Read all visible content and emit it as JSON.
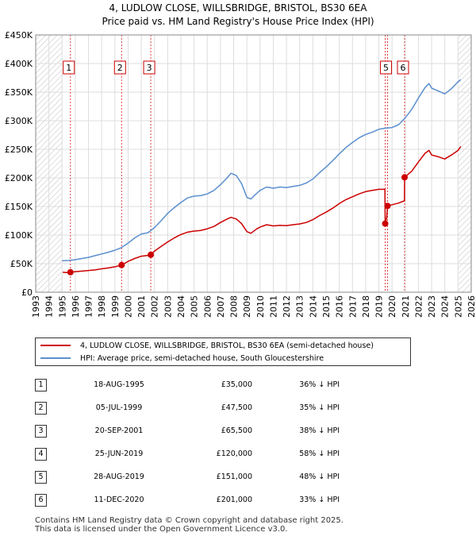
{
  "title": "4, LUDLOW CLOSE, WILLSBRIDGE, BRISTOL, BS30 6EA",
  "subtitle": "Price paid vs. HM Land Registry's House Price Index (HPI)",
  "chart_data": {
    "type": "line",
    "x_ticks": [
      "1993",
      "1994",
      "1995",
      "1996",
      "1997",
      "1998",
      "1999",
      "2000",
      "2001",
      "2002",
      "2003",
      "2004",
      "2005",
      "2006",
      "2007",
      "2008",
      "2009",
      "2010",
      "2011",
      "2012",
      "2013",
      "2014",
      "2015",
      "2016",
      "2017",
      "2018",
      "2019",
      "2020",
      "2021",
      "2022",
      "2023",
      "2024",
      "2025",
      "2026"
    ],
    "y_ticks": [
      "£0",
      "£50K",
      "£100K",
      "£150K",
      "£200K",
      "£250K",
      "£300K",
      "£350K",
      "£400K",
      "£450K"
    ],
    "xlim": [
      1993,
      2026
    ],
    "ylim": [
      0,
      450000
    ],
    "grid": true,
    "hatched_regions": [
      [
        1993,
        1995
      ],
      [
        2025,
        2026
      ]
    ],
    "colors": {
      "price_paid": "#cc0000",
      "hpi": "#5b8fcf",
      "sale_marker_line": "#e04040"
    },
    "series": [
      {
        "name": "4, LUDLOW CLOSE, WILLSBRIDGE, BRISTOL, BS30 6EA (semi-detached house)",
        "color": "#cc0000",
        "points": [
          [
            1995.05,
            35000
          ],
          [
            1995.3,
            34500
          ],
          [
            1995.63,
            35000
          ],
          [
            1996,
            36000
          ],
          [
            1996.5,
            37000
          ],
          [
            1997,
            38000
          ],
          [
            1997.5,
            39000
          ],
          [
            1998,
            41000
          ],
          [
            1998.5,
            42500
          ],
          [
            1999,
            44500
          ],
          [
            1999.51,
            47500
          ],
          [
            2000,
            54000
          ],
          [
            2000.5,
            59000
          ],
          [
            2001,
            63000
          ],
          [
            2001.5,
            64500
          ],
          [
            2001.72,
            65500
          ],
          [
            2002,
            72000
          ],
          [
            2002.5,
            80000
          ],
          [
            2003,
            88000
          ],
          [
            2003.5,
            95000
          ],
          [
            2004,
            101000
          ],
          [
            2004.5,
            105000
          ],
          [
            2005,
            107000
          ],
          [
            2005.5,
            108000
          ],
          [
            2006,
            111000
          ],
          [
            2006.5,
            115000
          ],
          [
            2007,
            122000
          ],
          [
            2007.5,
            128000
          ],
          [
            2007.8,
            131000
          ],
          [
            2008.2,
            128000
          ],
          [
            2008.6,
            120000
          ],
          [
            2009,
            106000
          ],
          [
            2009.3,
            103000
          ],
          [
            2009.7,
            110000
          ],
          [
            2010,
            114000
          ],
          [
            2010.5,
            118000
          ],
          [
            2011,
            116000
          ],
          [
            2011.5,
            117000
          ],
          [
            2012,
            116500
          ],
          [
            2012.5,
            118000
          ],
          [
            2013,
            119500
          ],
          [
            2013.5,
            122000
          ],
          [
            2014,
            127000
          ],
          [
            2014.5,
            134000
          ],
          [
            2015,
            140000
          ],
          [
            2015.5,
            147000
          ],
          [
            2016,
            155000
          ],
          [
            2016.5,
            162000
          ],
          [
            2017,
            167000
          ],
          [
            2017.5,
            172000
          ],
          [
            2018,
            176000
          ],
          [
            2018.5,
            178000
          ],
          [
            2019,
            180000
          ],
          [
            2019.46,
            180000
          ],
          [
            2019.48,
            120000
          ],
          [
            2019.6,
            131000
          ],
          [
            2019.66,
            151000
          ],
          [
            2020,
            153000
          ],
          [
            2020.5,
            156000
          ],
          [
            2020.94,
            160000
          ],
          [
            2020.95,
            201000
          ],
          [
            2021.5,
            212000
          ],
          [
            2022,
            228000
          ],
          [
            2022.5,
            243000
          ],
          [
            2022.8,
            248000
          ],
          [
            2023,
            240000
          ],
          [
            2023.5,
            237000
          ],
          [
            2024,
            233000
          ],
          [
            2024.5,
            240000
          ],
          [
            2025,
            248000
          ],
          [
            2025.2,
            255000
          ]
        ]
      },
      {
        "name": "HPI: Average price, semi-detached house, South Gloucestershire",
        "color": "#5b8fcf",
        "points": [
          [
            1995,
            55000
          ],
          [
            1995.5,
            55500
          ],
          [
            1996,
            57000
          ],
          [
            1996.5,
            59000
          ],
          [
            1997,
            61000
          ],
          [
            1997.5,
            64000
          ],
          [
            1998,
            67000
          ],
          [
            1998.5,
            70000
          ],
          [
            1999,
            73500
          ],
          [
            1999.5,
            78000
          ],
          [
            2000,
            86000
          ],
          [
            2000.5,
            95000
          ],
          [
            2001,
            102000
          ],
          [
            2001.5,
            104000
          ],
          [
            2002,
            113000
          ],
          [
            2002.5,
            125000
          ],
          [
            2003,
            138000
          ],
          [
            2003.5,
            148000
          ],
          [
            2004,
            157000
          ],
          [
            2004.5,
            165000
          ],
          [
            2005,
            168000
          ],
          [
            2005.5,
            169000
          ],
          [
            2006,
            172000
          ],
          [
            2006.5,
            178000
          ],
          [
            2007,
            188000
          ],
          [
            2007.5,
            200000
          ],
          [
            2007.8,
            208000
          ],
          [
            2008.2,
            204000
          ],
          [
            2008.6,
            190000
          ],
          [
            2009,
            166000
          ],
          [
            2009.3,
            163000
          ],
          [
            2009.7,
            172000
          ],
          [
            2010,
            178000
          ],
          [
            2010.5,
            184000
          ],
          [
            2011,
            182000
          ],
          [
            2011.5,
            184000
          ],
          [
            2012,
            183000
          ],
          [
            2012.5,
            185000
          ],
          [
            2013,
            187000
          ],
          [
            2013.5,
            191000
          ],
          [
            2014,
            198000
          ],
          [
            2014.5,
            209000
          ],
          [
            2015,
            219000
          ],
          [
            2015.5,
            230000
          ],
          [
            2016,
            242000
          ],
          [
            2016.5,
            253000
          ],
          [
            2017,
            262000
          ],
          [
            2017.5,
            270000
          ],
          [
            2018,
            276000
          ],
          [
            2018.5,
            280000
          ],
          [
            2019,
            285000
          ],
          [
            2019.5,
            287000
          ],
          [
            2020,
            288000
          ],
          [
            2020.5,
            293000
          ],
          [
            2021,
            305000
          ],
          [
            2021.5,
            320000
          ],
          [
            2022,
            340000
          ],
          [
            2022.5,
            358000
          ],
          [
            2022.8,
            365000
          ],
          [
            2023,
            357000
          ],
          [
            2023.5,
            352000
          ],
          [
            2024,
            347000
          ],
          [
            2024.5,
            356000
          ],
          [
            2025,
            368000
          ],
          [
            2025.2,
            372000
          ]
        ]
      }
    ],
    "sales": [
      {
        "num": "1",
        "x": 1995.63,
        "price": 35000
      },
      {
        "num": "2",
        "x": 1999.51,
        "price": 47500
      },
      {
        "num": "3",
        "x": 2001.72,
        "price": 65500
      },
      {
        "num": "4",
        "x": 2019.48,
        "price": 120000
      },
      {
        "num": "5",
        "x": 2019.66,
        "price": 151000
      },
      {
        "num": "6",
        "x": 2020.95,
        "price": 201000
      }
    ],
    "label_boxes": [
      {
        "num": "1",
        "x": 1995.63
      },
      {
        "num": "2",
        "x": 1999.51
      },
      {
        "num": "3",
        "x": 2001.72
      },
      {
        "num": "5",
        "x": 2019.66
      },
      {
        "num": "6",
        "x": 2020.95
      }
    ]
  },
  "legend": [
    {
      "label": "4, LUDLOW CLOSE, WILLSBRIDGE, BRISTOL, BS30 6EA (semi-detached house)",
      "color": "#cc0000"
    },
    {
      "label": "HPI: Average price, semi-detached house, South Gloucestershire",
      "color": "#5b8fcf"
    }
  ],
  "table": [
    {
      "num": "1",
      "date": "18-AUG-1995",
      "price": "£35,000",
      "hpi": "36% ↓ HPI"
    },
    {
      "num": "2",
      "date": "05-JUL-1999",
      "price": "£47,500",
      "hpi": "35% ↓ HPI"
    },
    {
      "num": "3",
      "date": "20-SEP-2001",
      "price": "£65,500",
      "hpi": "38% ↓ HPI"
    },
    {
      "num": "4",
      "date": "25-JUN-2019",
      "price": "£120,000",
      "hpi": "58% ↓ HPI"
    },
    {
      "num": "5",
      "date": "28-AUG-2019",
      "price": "£151,000",
      "hpi": "48% ↓ HPI"
    },
    {
      "num": "6",
      "date": "11-DEC-2020",
      "price": "£201,000",
      "hpi": "33% ↓ HPI"
    }
  ],
  "footer": {
    "line1": "Contains HM Land Registry data © Crown copyright and database right 2025.",
    "line2": "This data is licensed under the Open Government Licence v3.0."
  }
}
